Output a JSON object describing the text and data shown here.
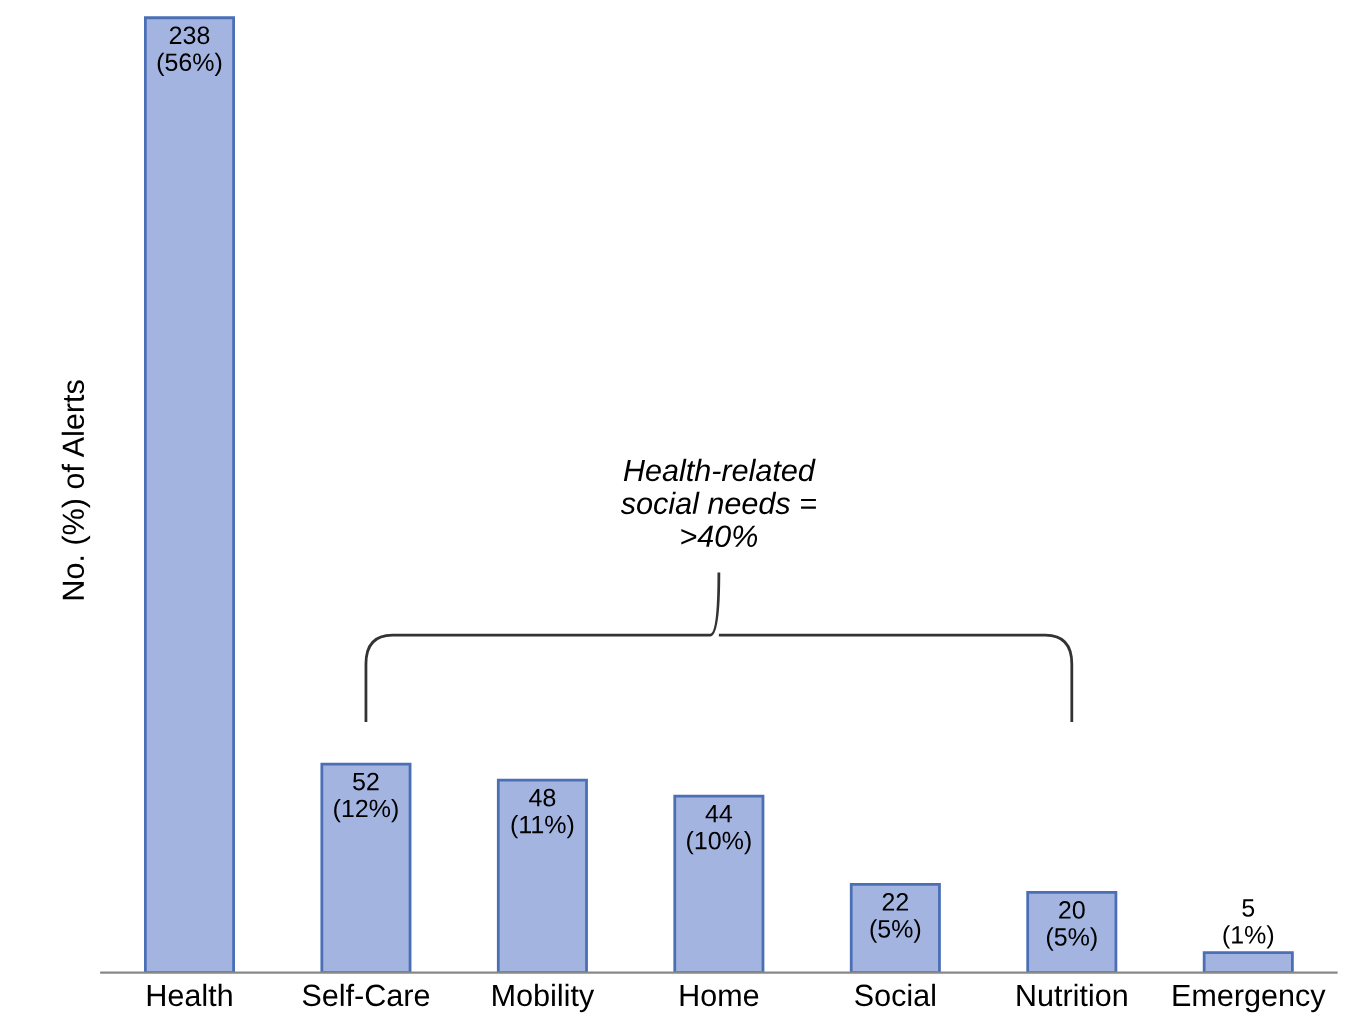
{
  "chart_data": {
    "type": "bar",
    "ylabel": "No. (%) of Alerts",
    "categories": [
      "Health",
      "Self-Care",
      "Mobility",
      "Home",
      "Social",
      "Nutrition",
      "Emergency"
    ],
    "values": [
      238,
      52,
      48,
      44,
      22,
      20,
      5
    ],
    "value_labels": [
      "238\n(56%)",
      "52\n(12%)",
      "48\n(11%)",
      "44\n(10%)",
      "22\n(5%)",
      "20\n(5%)",
      "5\n(1%)"
    ],
    "color": "#a4b4e0",
    "annotations": [
      "Health-related\nsocial needs =\n>40%"
    ],
    "grid": false,
    "legend": false
  }
}
